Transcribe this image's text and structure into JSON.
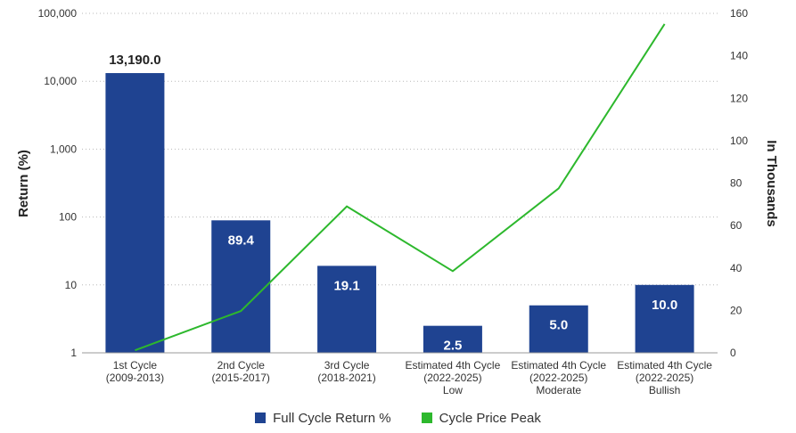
{
  "chart_data": {
    "type": "bar",
    "categories": [
      [
        "1st Cycle",
        "(2009-2013)"
      ],
      [
        "2nd Cycle",
        "(2015-2017)"
      ],
      [
        "3rd Cycle",
        "(2018-2021)"
      ],
      [
        "Estimated 4th Cycle",
        "(2022-2025)",
        "Low"
      ],
      [
        "Estimated 4th Cycle",
        "(2022-2025)",
        "Moderate"
      ],
      [
        "Estimated 4th Cycle",
        "(2022-2025)",
        "Bullish"
      ]
    ],
    "series": [
      {
        "name": "Full Cycle Return %",
        "type": "bar",
        "axis": "left",
        "color": "#1f4391",
        "values": [
          13190.0,
          89.4,
          19.1,
          2.5,
          5.0,
          10.0
        ],
        "labels": [
          "13,190.0",
          "89.4",
          "19.1",
          "2.5",
          "5.0",
          "10.0"
        ]
      },
      {
        "name": "Cycle Price Peak",
        "type": "line",
        "axis": "right",
        "color": "#2db82d",
        "values": [
          1.2,
          19.7,
          69,
          38.5,
          77.5,
          155
        ]
      }
    ],
    "y_left": {
      "label": "Return (%)",
      "scale": "log",
      "range": [
        1,
        100000
      ],
      "ticks": [
        1,
        10,
        100,
        1000,
        10000,
        100000
      ],
      "tick_labels": [
        "1",
        "10",
        "100",
        "1,000",
        "10,000",
        "100,000"
      ]
    },
    "y_right": {
      "label": "In Thousands",
      "scale": "linear",
      "range": [
        0,
        160
      ],
      "ticks": [
        0,
        20,
        40,
        60,
        80,
        100,
        120,
        140,
        160
      ],
      "tick_labels": [
        "0",
        "20",
        "40",
        "60",
        "80",
        "100",
        "120",
        "140",
        "160"
      ]
    },
    "grid": "horizontal-dotted",
    "legend_position": "bottom-center"
  }
}
